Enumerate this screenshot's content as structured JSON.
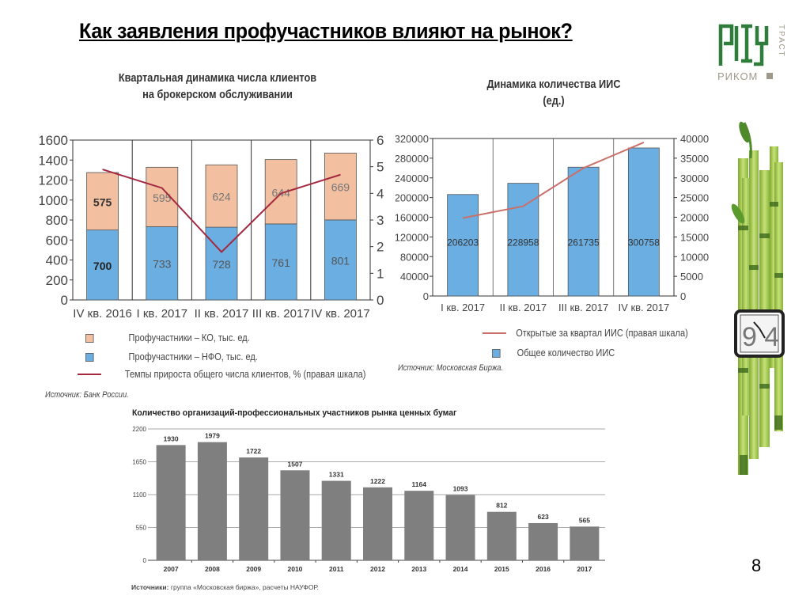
{
  "slide": {
    "title": "Как заявления профучастников влияют на рынок?",
    "page_number": "8",
    "logo": {
      "vertical_text": "ТРАСТ",
      "bottom_text": "РИКОМ",
      "brand_color": "#2e7d3a",
      "accent_gray": "#9e9a8a"
    },
    "decoration": {
      "type": "bamboo-with-watch-image",
      "watch_text": "9 4"
    }
  },
  "chart1": {
    "title_line1": "Квартальная динамика числа клиентов",
    "title_line2": "на брокерском обслуживании",
    "legend": [
      {
        "label": "Профучастники – КО, тыс. ед.",
        "color": "#f2bfa0"
      },
      {
        "label": "Профучастники – НФО, тыс. ед.",
        "color": "#6aaee2"
      },
      {
        "label": "Темпы прироста общего числа клиентов, %  (правая шкала)",
        "color": "#a3283f"
      }
    ],
    "source": "Источник: Банк России."
  },
  "chart2": {
    "title_line1": "Динамика количества ИИС",
    "title_line2": "(ед.)",
    "legend": [
      {
        "label": "Открытые за квартал ИИС (правая шкала)",
        "color": "#c9706a"
      },
      {
        "label": "Общее количество ИИС",
        "color": "#6aaee2"
      }
    ],
    "source": "Источник: Московская Биржа."
  },
  "chart3": {
    "title": "Количество организаций-профессиональных участников рынка ценных бумаг",
    "source_bold": "Источники:",
    "source_rest": " группа «Московская биржа», расчеты НАУФОР."
  },
  "chart_data": [
    {
      "type": "bar",
      "stacked": true,
      "title": "Квартальная динамика числа клиентов на брокерском обслуживании",
      "categories": [
        "IV кв. 2016",
        "I кв. 2017",
        "II кв. 2017",
        "III кв. 2017",
        "IV кв. 2017"
      ],
      "series": [
        {
          "name": "Профучастники – НФО, тыс. ед.",
          "values": [
            700,
            733,
            728,
            761,
            801
          ],
          "color": "#6aaee2"
        },
        {
          "name": "Профучастники – КО, тыс. ед.",
          "values": [
            575,
            595,
            624,
            644,
            669
          ],
          "color": "#f2bfa0"
        },
        {
          "name": "Темпы прироста общего числа клиентов, % (правая шкала)",
          "type": "line",
          "axis": "right",
          "values": [
            4.9,
            4.2,
            1.8,
            4.0,
            4.7
          ],
          "color": "#a3283f"
        }
      ],
      "ylim": [
        0,
        1600
      ],
      "yticks": [
        0,
        200,
        400,
        600,
        800,
        1000,
        1200,
        1400,
        1600
      ],
      "y2lim": [
        0,
        6
      ],
      "y2ticks": [
        0,
        1,
        2,
        3,
        4,
        5,
        6
      ],
      "xlabel": "",
      "ylabel": "",
      "grid": false,
      "legend_position": "bottom"
    },
    {
      "type": "bar",
      "title": "Динамика количества ИИС (ед.)",
      "categories": [
        "I кв. 2017",
        "II кв. 2017",
        "III кв. 2017",
        "IV кв. 2017"
      ],
      "series": [
        {
          "name": "Общее количество ИИС",
          "values": [
            206203,
            228958,
            261735,
            300758
          ],
          "color": "#6aaee2"
        },
        {
          "name": "Открытые за квартал ИИС (правая шкала)",
          "type": "line",
          "axis": "right",
          "values": [
            19800,
            22800,
            32500,
            39000
          ],
          "color": "#c9706a"
        }
      ],
      "ylim": [
        0,
        320000
      ],
      "yticks": [
        0,
        40000,
        80000,
        120000,
        160000,
        200000,
        240000,
        280000,
        320000
      ],
      "y2lim": [
        0,
        40000
      ],
      "y2ticks": [
        0,
        5000,
        10000,
        15000,
        20000,
        25000,
        30000,
        35000,
        40000
      ],
      "xlabel": "",
      "ylabel": "",
      "grid": false,
      "legend_position": "bottom"
    },
    {
      "type": "bar",
      "title": "Количество организаций-профессиональных участников рынка ценных бумаг",
      "categories": [
        "2007",
        "2008",
        "2009",
        "2010",
        "2011",
        "2012",
        "2013",
        "2014",
        "2015",
        "2016",
        "2017"
      ],
      "values": [
        1930,
        1979,
        1722,
        1507,
        1331,
        1222,
        1164,
        1093,
        812,
        623,
        565
      ],
      "color": "#7f7f7f",
      "ylim": [
        0,
        2200
      ],
      "yticks": [
        0,
        550,
        1100,
        1650,
        2200
      ],
      "xlabel": "",
      "ylabel": "",
      "grid": true
    }
  ]
}
